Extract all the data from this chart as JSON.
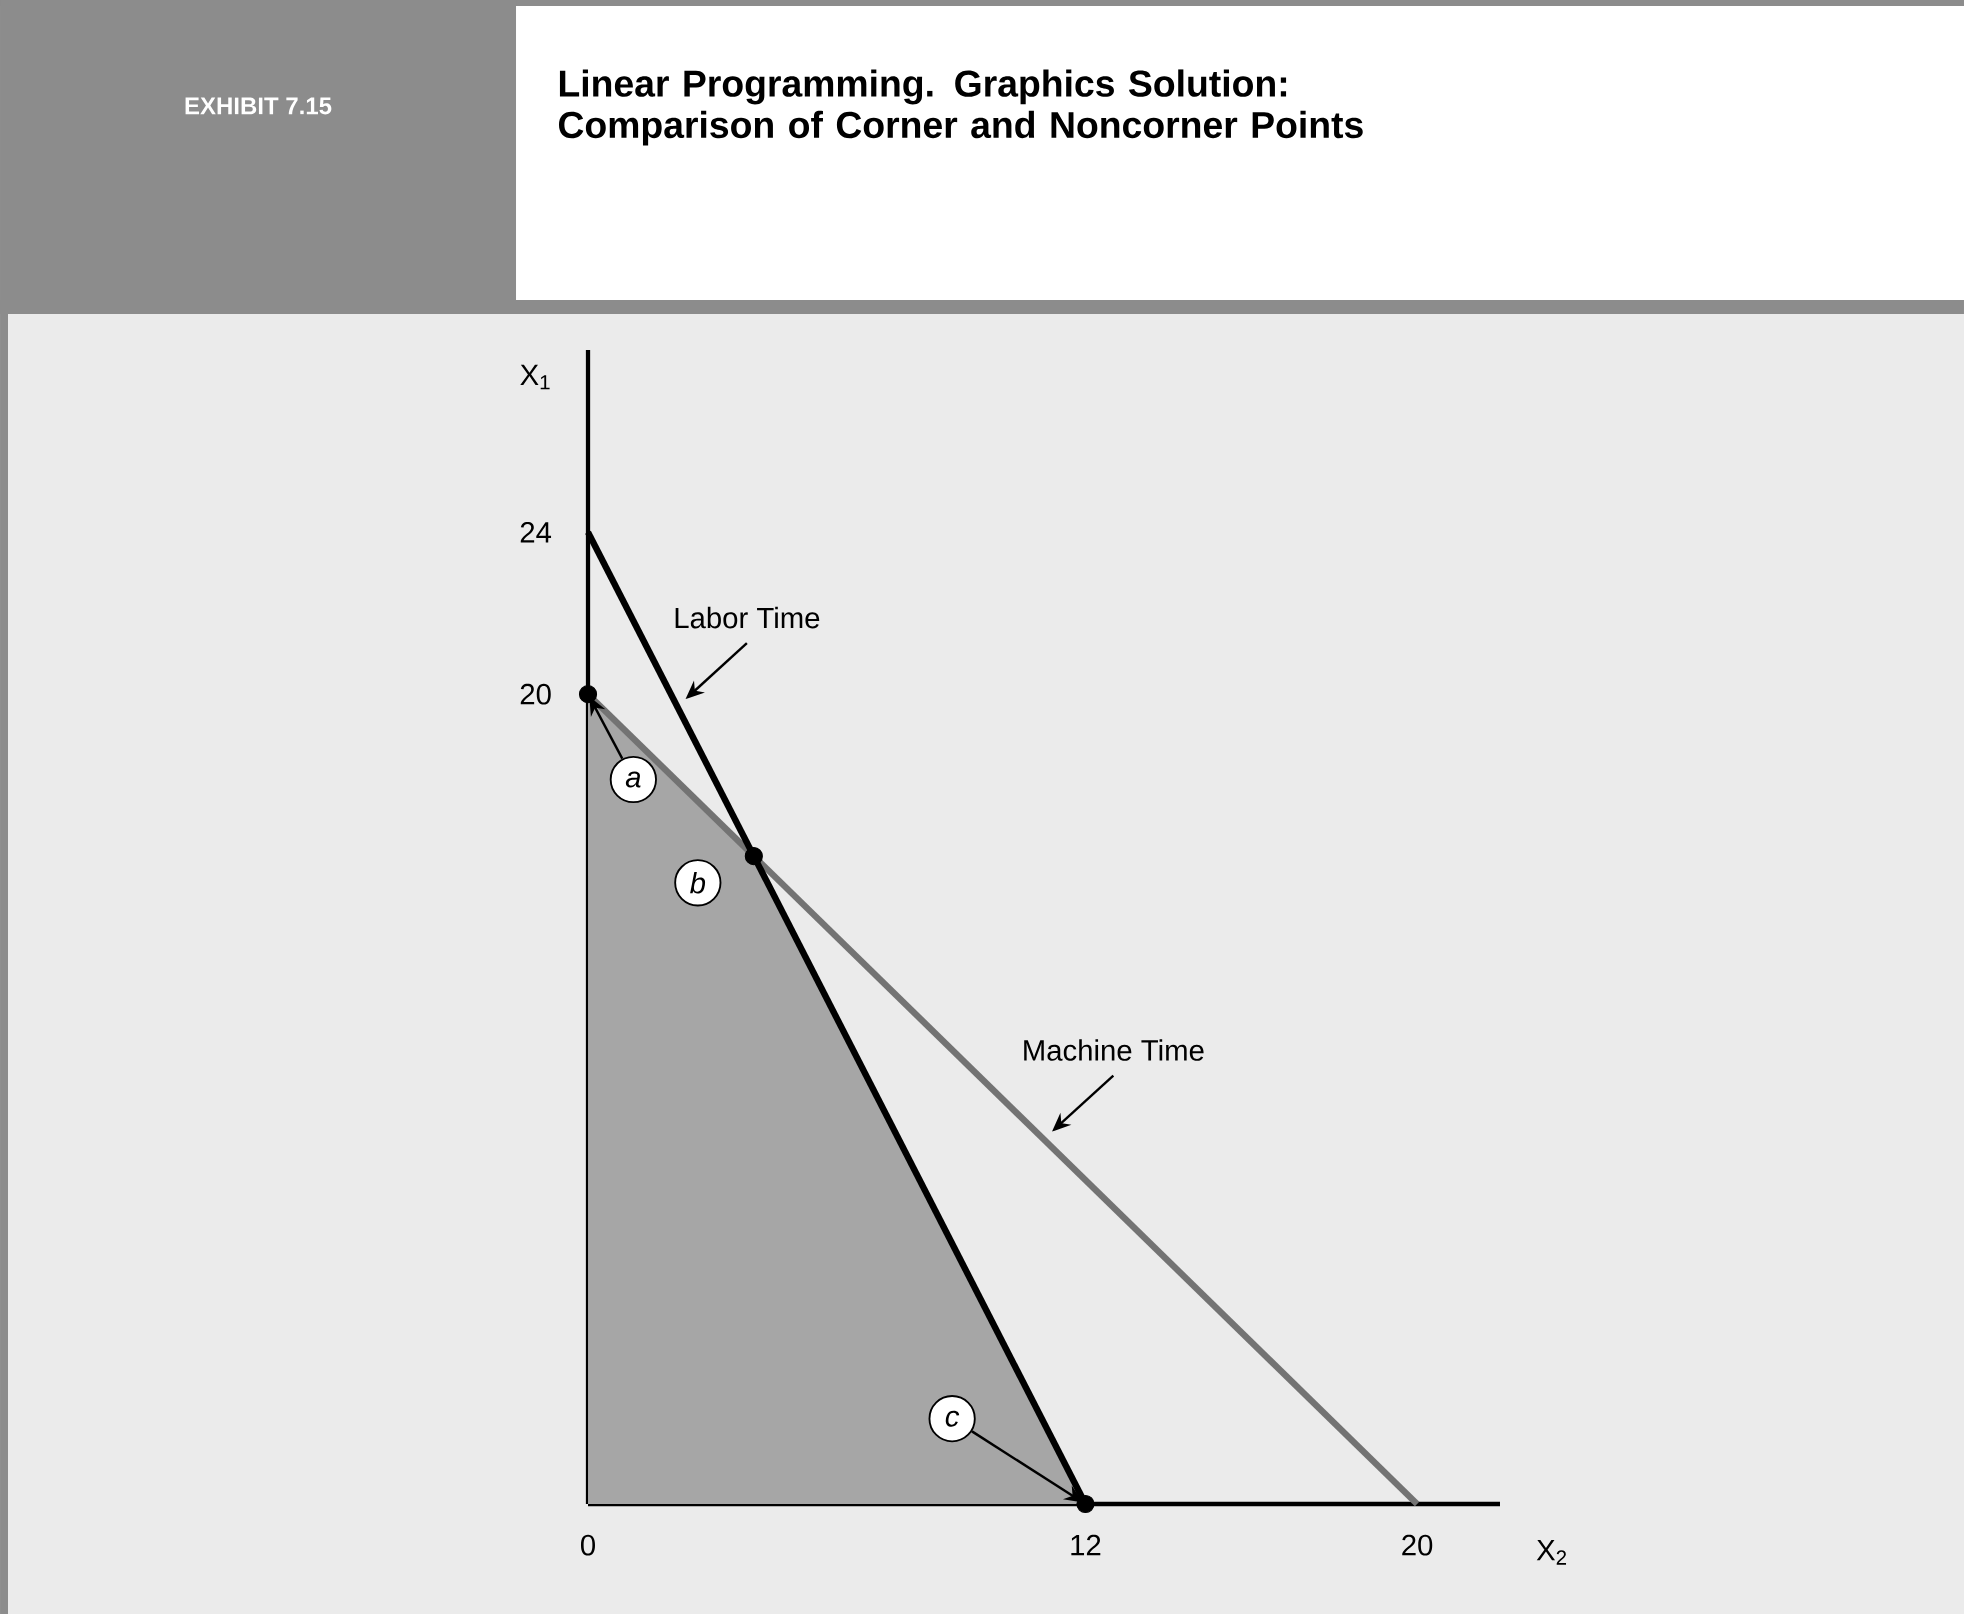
{
  "chart_data": {
    "type": "line",
    "title": "Linear Programming. Graphics Solution: Comparison of Corner and Noncorner Points",
    "subtitle": "EXHIBIT 7.15",
    "xlabel": "X$_{2}$",
    "ylabel": "X$_{1}$",
    "xlim": [
      0,
      22
    ],
    "ylim": [
      0,
      28.5
    ],
    "xticks": [
      0,
      12,
      20
    ],
    "yticks": [
      20,
      24
    ],
    "series": [
      {
        "type": "area",
        "color": "#a6a6a6",
        "x": [
          0,
          4,
          12
        ],
        "values": [
          20,
          16,
          0
        ]
      },
      {
        "name": "Machine Time",
        "type": "line",
        "color": "#737373",
        "x": [
          0,
          20
        ],
        "values": [
          20,
          0
        ]
      },
      {
        "name": "Labor Time",
        "type": "line",
        "color": "#000000",
        "x": [
          0,
          12
        ],
        "values": [
          24,
          0
        ]
      },
      {
        "type": "scatter",
        "color": "#000000",
        "x": [
          0,
          4,
          12
        ],
        "values": [
          20,
          16,
          0
        ]
      }
    ],
    "annotations": [
      {
        "text": "a",
        "x": 0,
        "y": 20
      },
      {
        "text": "b",
        "x": 4,
        "y": 16
      },
      {
        "text": "c",
        "x": 12,
        "y": 0
      }
    ]
  }
}
